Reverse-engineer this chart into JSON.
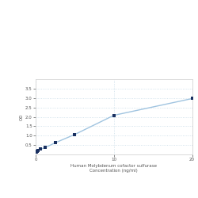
{
  "x_data": [
    0.0,
    0.078,
    0.156,
    0.313,
    0.625,
    1.25,
    2.5,
    5.0,
    10.0,
    20.0
  ],
  "y_data": [
    0.108,
    0.131,
    0.158,
    0.21,
    0.28,
    0.37,
    0.62,
    1.06,
    2.08,
    2.97
  ],
  "xlabel_line1": "Human Molybdenum cofactor sulfurase",
  "xlabel_line2": "Concentration (ng/ml)",
  "ylabel": "OD",
  "xlim": [
    0,
    20
  ],
  "ylim": [
    0,
    4.0
  ],
  "yticks": [
    0.5,
    1.0,
    1.5,
    2.0,
    2.5,
    3.0,
    3.5
  ],
  "xtick_vals": [
    0,
    10,
    20
  ],
  "xtick_labels": [
    "0",
    "10",
    "20"
  ],
  "grid_color": "#c8dce8",
  "line_color": "#a0c4e0",
  "marker_color": "#1a3060",
  "background_color": "#ffffff",
  "marker_size": 3.5,
  "line_width": 1.0,
  "tick_fontsize": 4.0,
  "label_fontsize": 4.0
}
